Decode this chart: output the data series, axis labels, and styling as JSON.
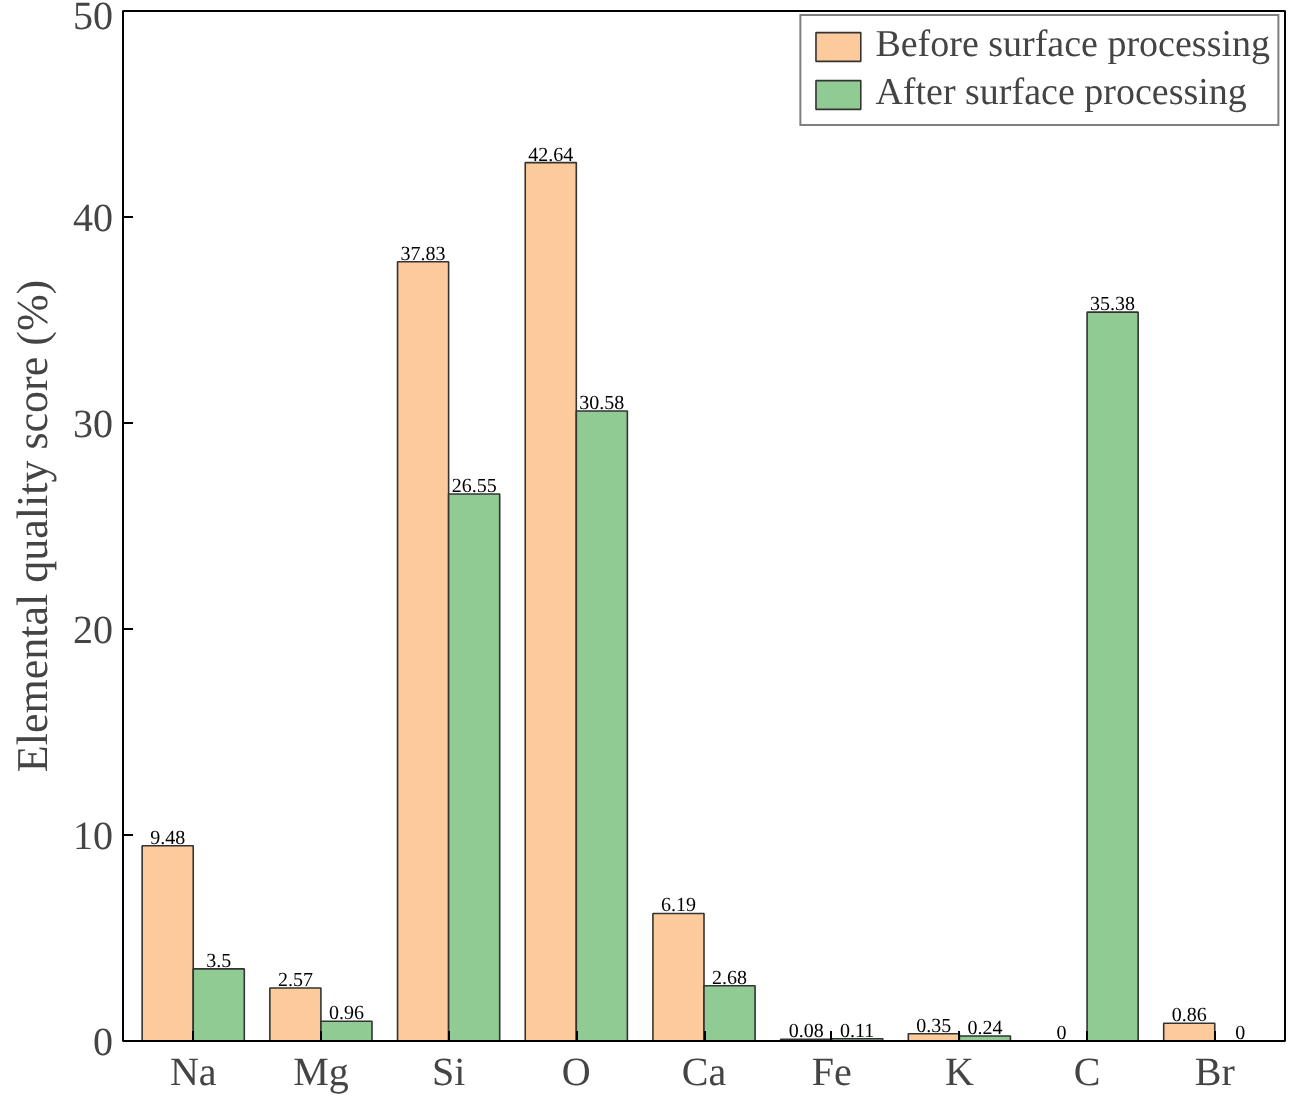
{
  "chart_data": {
    "type": "bar",
    "ylabel": "Elemental quality score (%)",
    "categories": [
      "Na",
      "Mg",
      "Si",
      "O",
      "Ca",
      "Fe",
      "K",
      "C",
      "Br"
    ],
    "series": [
      {
        "name": "Before surface processing",
        "color": "#fdcb9b",
        "values": [
          9.48,
          2.57,
          37.83,
          42.64,
          6.19,
          0.08,
          0.35,
          0,
          0.86
        ]
      },
      {
        "name": "After surface processing",
        "color": "#8fcb92",
        "values": [
          3.5,
          0.96,
          26.55,
          30.58,
          2.68,
          0.11,
          0.24,
          35.38,
          0
        ]
      }
    ],
    "ylim": [
      0,
      50
    ],
    "yticks": [
      0,
      10,
      20,
      30,
      40,
      50
    ],
    "grid": false,
    "legend": "top right",
    "data_labels": true
  }
}
